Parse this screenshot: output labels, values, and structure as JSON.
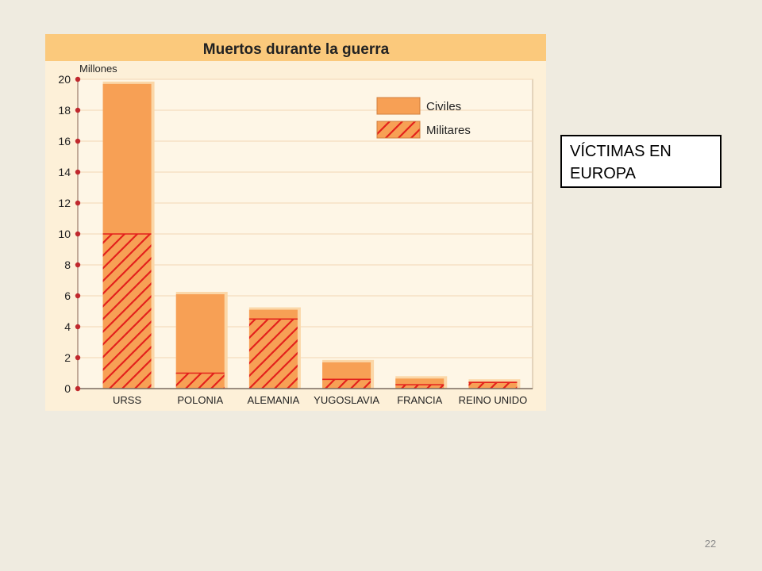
{
  "caption": "VÍCTIMAS EN EUROPA",
  "slide_number": "22",
  "colors": {
    "civiles": "#f7a055",
    "militares_fill": "#f7a055",
    "militares_hatch": "#e3211c",
    "title_band": "#fbc97c",
    "grid": "#f2d7b4",
    "axis_dot": "#c0282d"
  },
  "chart_data": {
    "type": "bar",
    "stacked": true,
    "title": "Muertos durante la guerra",
    "ylabel": "Millones",
    "ylim": [
      0,
      20
    ],
    "yticks": [
      0,
      2,
      4,
      6,
      8,
      10,
      12,
      14,
      16,
      18,
      20
    ],
    "categories": [
      "URSS",
      "POLONIA",
      "ALEMANIA",
      "YUGOSLAVIA",
      "FRANCIA",
      "REINO UNIDO"
    ],
    "series": [
      {
        "name": "Militares",
        "values": [
          10,
          1,
          4.5,
          0.6,
          0.25,
          0.4
        ]
      },
      {
        "name": "Civiles",
        "values": [
          9.7,
          5.1,
          0.6,
          1.1,
          0.4,
          0.05
        ]
      }
    ],
    "legend": {
      "position": "top-right",
      "entries": [
        "Civiles",
        "Militares"
      ]
    },
    "grid": true
  }
}
